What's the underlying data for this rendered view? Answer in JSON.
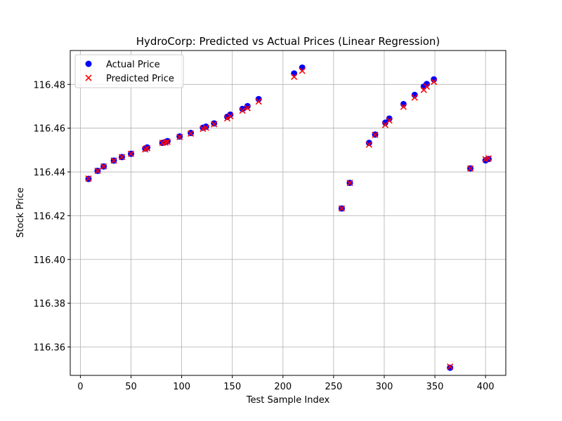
{
  "chart_data": {
    "type": "scatter",
    "title": "HydroCorp: Predicted vs Actual Prices (Linear Regression)",
    "xlabel": "Test Sample Index",
    "ylabel": "Stock Price",
    "xlim": [
      -10,
      420
    ],
    "ylim": [
      116.347,
      116.4955
    ],
    "xticks": [
      0,
      50,
      100,
      150,
      200,
      250,
      300,
      350,
      400
    ],
    "yticks": [
      116.36,
      116.38,
      116.4,
      116.42,
      116.44,
      116.46,
      116.48
    ],
    "ytick_labels": [
      "116.36",
      "116.38",
      "116.40",
      "116.42",
      "116.44",
      "116.46",
      "116.48"
    ],
    "grid": true,
    "legend_position": "upper-left",
    "series": [
      {
        "name": "Actual Price",
        "marker": "circle",
        "color": "#0000ff",
        "points": [
          [
            8,
            116.4368
          ],
          [
            17,
            116.4405
          ],
          [
            23,
            116.4425
          ],
          [
            33,
            116.4452
          ],
          [
            41,
            116.4468
          ],
          [
            50,
            116.4483
          ],
          [
            64,
            116.4507
          ],
          [
            66,
            116.4512
          ],
          [
            81,
            116.4533
          ],
          [
            84,
            116.4537
          ],
          [
            86,
            116.4541
          ],
          [
            98,
            116.4562
          ],
          [
            109,
            116.4578
          ],
          [
            121,
            116.4602
          ],
          [
            124,
            116.4607
          ],
          [
            132,
            116.4622
          ],
          [
            145,
            116.4652
          ],
          [
            148,
            116.4662
          ],
          [
            160,
            116.4688
          ],
          [
            165,
            116.4701
          ],
          [
            176,
            116.4733
          ],
          [
            211,
            116.485
          ],
          [
            219,
            116.4877
          ],
          [
            258,
            116.4233
          ],
          [
            266,
            116.435
          ],
          [
            285,
            116.4533
          ],
          [
            291,
            116.4571
          ],
          [
            301,
            116.4625
          ],
          [
            305,
            116.4644
          ],
          [
            319,
            116.471
          ],
          [
            330,
            116.4752
          ],
          [
            339,
            116.479
          ],
          [
            342,
            116.4802
          ],
          [
            349,
            116.4823
          ],
          [
            365,
            116.3505
          ],
          [
            385,
            116.4416
          ],
          [
            400,
            116.4453
          ],
          [
            403,
            116.4459
          ]
        ]
      },
      {
        "name": "Predicted Price",
        "marker": "x",
        "color": "#ff0000",
        "points": [
          [
            8,
            116.437
          ],
          [
            17,
            116.4405
          ],
          [
            23,
            116.4425
          ],
          [
            33,
            116.4452
          ],
          [
            41,
            116.4468
          ],
          [
            50,
            116.4483
          ],
          [
            64,
            116.4503
          ],
          [
            66,
            116.4508
          ],
          [
            81,
            116.4533
          ],
          [
            84,
            116.4534
          ],
          [
            86,
            116.4538
          ],
          [
            98,
            116.456
          ],
          [
            109,
            116.4575
          ],
          [
            121,
            116.4597
          ],
          [
            124,
            116.4602
          ],
          [
            132,
            116.4618
          ],
          [
            145,
            116.4645
          ],
          [
            148,
            116.4655
          ],
          [
            160,
            116.468
          ],
          [
            165,
            116.4692
          ],
          [
            176,
            116.4722
          ],
          [
            211,
            116.4835
          ],
          [
            219,
            116.4862
          ],
          [
            258,
            116.4233
          ],
          [
            266,
            116.435
          ],
          [
            285,
            116.4525
          ],
          [
            291,
            116.457
          ],
          [
            301,
            116.4615
          ],
          [
            305,
            116.4635
          ],
          [
            319,
            116.4698
          ],
          [
            330,
            116.474
          ],
          [
            339,
            116.4775
          ],
          [
            342,
            116.479
          ],
          [
            349,
            116.4812
          ],
          [
            365,
            116.351
          ],
          [
            385,
            116.4416
          ],
          [
            400,
            116.4458
          ],
          [
            403,
            116.4462
          ]
        ]
      }
    ]
  }
}
